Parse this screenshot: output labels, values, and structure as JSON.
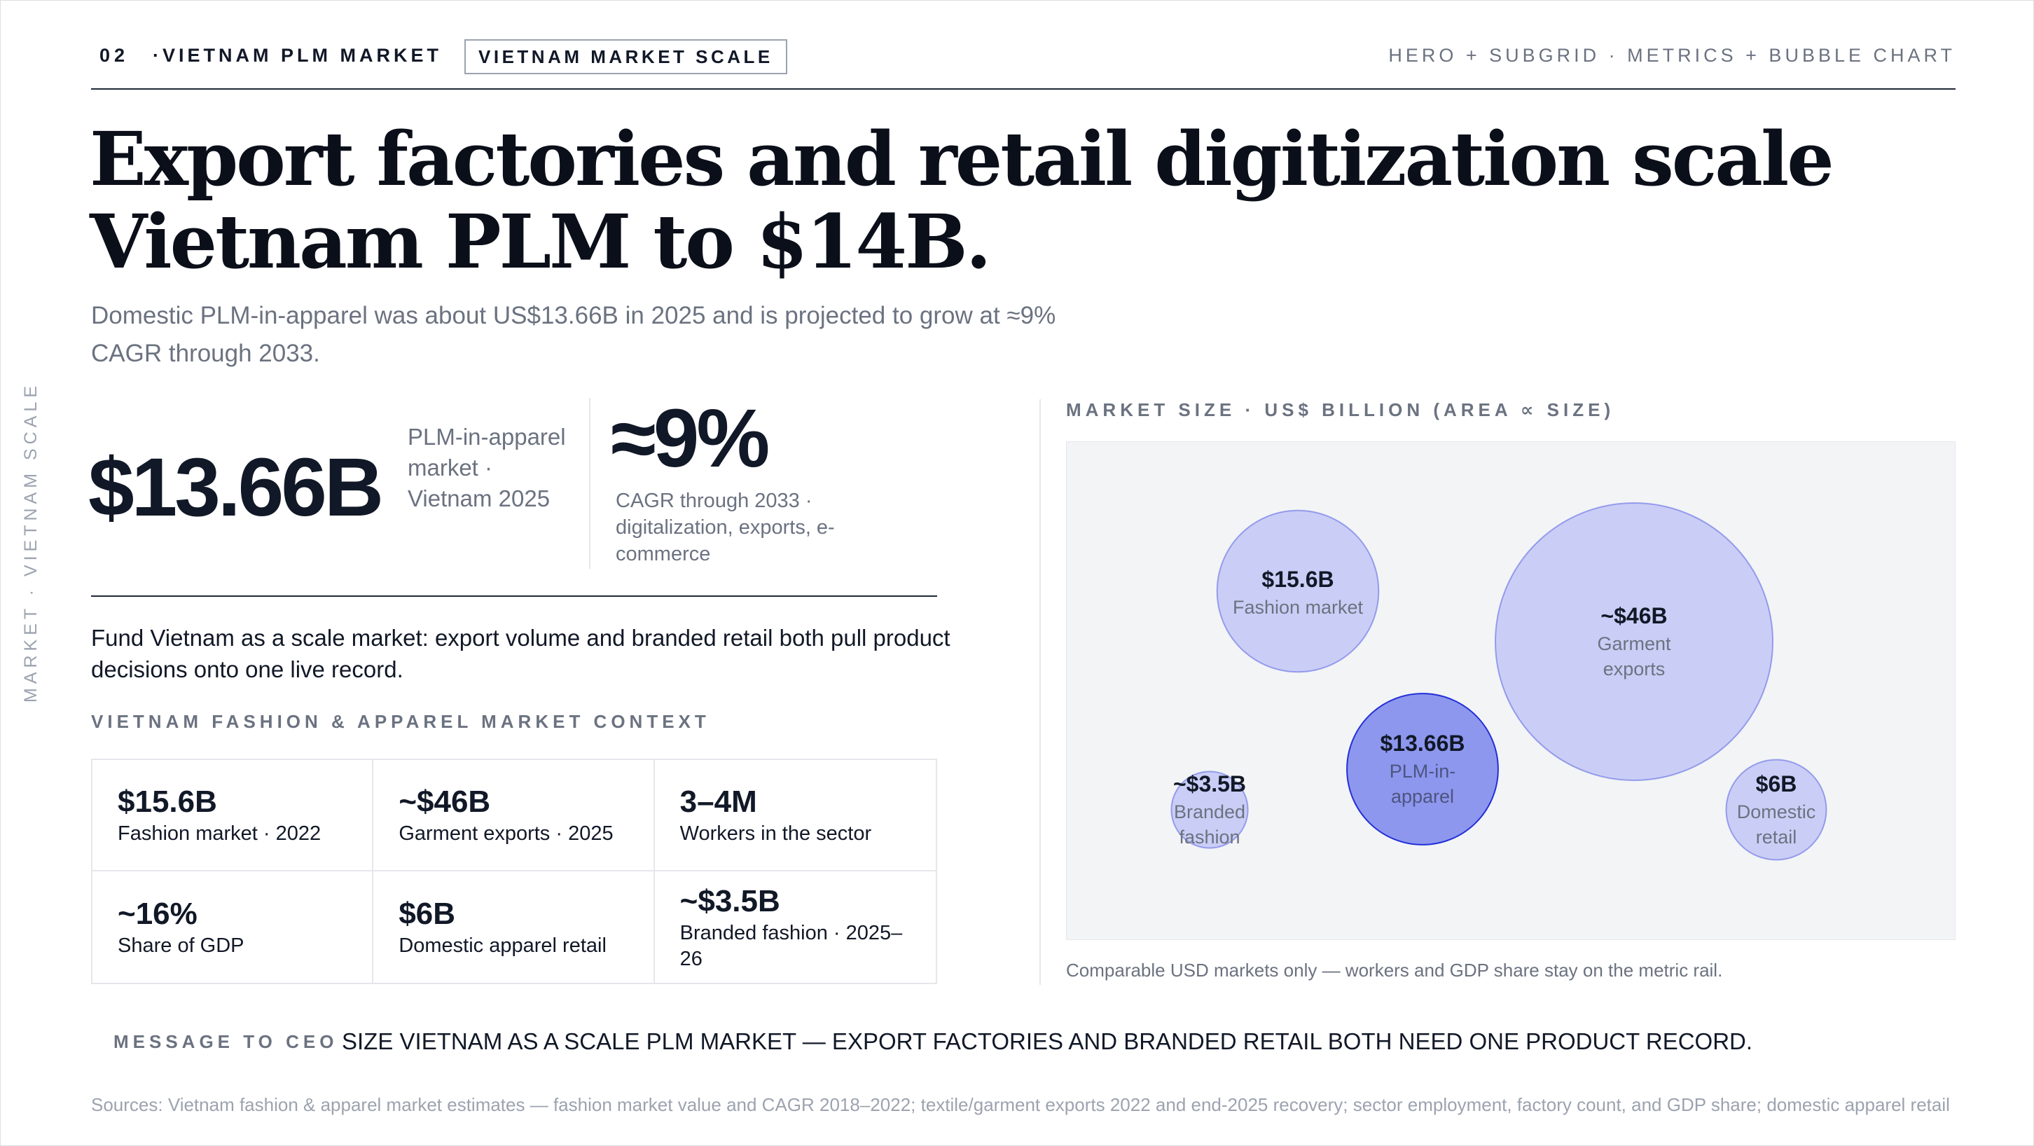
{
  "header": {
    "section_number": "02",
    "section_name": "·VIETNAM PLM MARKET",
    "section_tag": "VIETNAM MARKET SCALE",
    "layout_note": "HERO + SUBGRID · METRICS + BUBBLE CHART"
  },
  "side_label": "MARKET · VIETNAM SCALE",
  "headline": "Export factories and retail digitization scale Vietnam PLM to $14B.",
  "subhead": "Domestic PLM-in-apparel was about US$13.66B in 2025 and is projected to grow at ≈9% CAGR through 2033.",
  "hero": {
    "value": "$13.66B",
    "caption": "PLM-in-apparel market · Vietnam 2025",
    "cagr": "≈9%",
    "cagr_caption": "CAGR through 2033 · digitalization, exports, e-commerce"
  },
  "fund_statement": "Fund Vietnam as a scale market: export volume and branded retail both pull product decisions onto one live record.",
  "context": {
    "label": "VIETNAM FASHION & APPAREL MARKET CONTEXT",
    "cells": [
      {
        "value": "$15.6B",
        "label": "Fashion market · 2022"
      },
      {
        "value": "~$46B",
        "label": "Garment exports · 2025"
      },
      {
        "value": "3–4M",
        "label": "Workers in the sector"
      },
      {
        "value": "~16%",
        "label": "Share of GDP"
      },
      {
        "value": "$6B",
        "label": "Domestic apparel retail"
      },
      {
        "value": "~$3.5B",
        "label": "Branded fashion · 2025–26"
      }
    ]
  },
  "chart_label": "MARKET SIZE · US$ BILLION (AREA ∝ SIZE)",
  "chart_note": "Comparable USD markets only — workers and GDP share stay on the metric rail.",
  "chart_data": {
    "type": "scatter",
    "encoding": "bubble area proportional to market size (US$ billion)",
    "colors": {
      "background": "#f3f4f6",
      "bubble_fill": "#c7cbf5",
      "bubble_stroke": "#4b57e0",
      "highlight_fill": "#8d97ee",
      "highlight_stroke": "#2330d8"
    },
    "series": [
      {
        "value_label": "$15.6B",
        "name": "Fashion market",
        "value": 15.6,
        "highlight": false
      },
      {
        "value_label": "~$46B",
        "name": "Garment exports",
        "value": 46,
        "highlight": false
      },
      {
        "value_label": "$13.66B",
        "name": "PLM-in-apparel",
        "value": 13.66,
        "highlight": true
      },
      {
        "value_label": "~$3.5B",
        "name": "Branded fashion",
        "value": 3.5,
        "highlight": false
      },
      {
        "value_label": "$6B",
        "name": "Domestic retail",
        "value": 6,
        "highlight": false
      }
    ]
  },
  "message": {
    "label": "MESSAGE TO CEO",
    "text": "SIZE VIETNAM AS A SCALE PLM MARKET — EXPORT FACTORIES AND BRANDED RETAIL BOTH NEED ONE PRODUCT RECORD."
  },
  "sources": "Sources: Vietnam fashion & apparel market estimates — fashion market value and CAGR 2018–2022; textile/garment exports 2022 and end-2025 recovery; sector employment, factory count, and GDP share; domestic apparel retail and branded fashion estimates."
}
